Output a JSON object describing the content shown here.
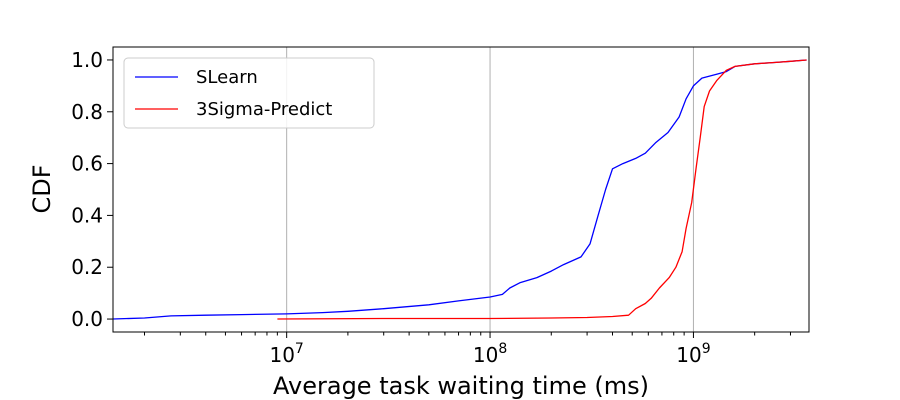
{
  "chart_data": {
    "type": "line",
    "xlabel": "Average task waiting time (ms)",
    "ylabel": "CDF",
    "xscale": "log",
    "xlim": [
      1400000,
      3700000000
    ],
    "ylim": [
      -0.05,
      1.05
    ],
    "x_ticks": [
      {
        "value": 10000000,
        "base": "10",
        "exp": "7"
      },
      {
        "value": 100000000,
        "base": "10",
        "exp": "8"
      },
      {
        "value": 1000000000,
        "base": "10",
        "exp": "9"
      }
    ],
    "y_ticks": [
      "0.0",
      "0.2",
      "0.4",
      "0.6",
      "0.8",
      "1.0"
    ],
    "grid": "x-major",
    "legend_position": "top-left",
    "series": [
      {
        "name": "SLearn",
        "color": "#0000ff",
        "points": [
          [
            1400000,
            0.0
          ],
          [
            2000000,
            0.004
          ],
          [
            2700000,
            0.012
          ],
          [
            4000000,
            0.015
          ],
          [
            6000000,
            0.017
          ],
          [
            10000000,
            0.02
          ],
          [
            15000000,
            0.025
          ],
          [
            20000000,
            0.03
          ],
          [
            30000000,
            0.04
          ],
          [
            50000000,
            0.055
          ],
          [
            70000000,
            0.07
          ],
          [
            100000000,
            0.085
          ],
          [
            115000000,
            0.095
          ],
          [
            125000000,
            0.12
          ],
          [
            140000000,
            0.14
          ],
          [
            170000000,
            0.16
          ],
          [
            200000000,
            0.185
          ],
          [
            230000000,
            0.21
          ],
          [
            280000000,
            0.24
          ],
          [
            310000000,
            0.29
          ],
          [
            340000000,
            0.4
          ],
          [
            370000000,
            0.5
          ],
          [
            400000000,
            0.58
          ],
          [
            450000000,
            0.6
          ],
          [
            520000000,
            0.62
          ],
          [
            580000000,
            0.64
          ],
          [
            650000000,
            0.68
          ],
          [
            750000000,
            0.72
          ],
          [
            850000000,
            0.78
          ],
          [
            920000000,
            0.85
          ],
          [
            1000000000,
            0.9
          ],
          [
            1100000000,
            0.93
          ],
          [
            1300000000,
            0.945
          ],
          [
            1450000000,
            0.955
          ],
          [
            1600000000,
            0.975
          ],
          [
            2000000000,
            0.985
          ],
          [
            2500000000,
            0.99
          ],
          [
            3000000000,
            0.995
          ],
          [
            3600000000,
            1.0
          ]
        ]
      },
      {
        "name": "3Sigma-Predict",
        "color": "#ff0000",
        "points": [
          [
            9000000,
            0.0
          ],
          [
            30000000,
            0.002
          ],
          [
            100000000,
            0.002
          ],
          [
            200000000,
            0.004
          ],
          [
            300000000,
            0.006
          ],
          [
            400000000,
            0.01
          ],
          [
            480000000,
            0.015
          ],
          [
            520000000,
            0.04
          ],
          [
            580000000,
            0.06
          ],
          [
            620000000,
            0.08
          ],
          [
            680000000,
            0.12
          ],
          [
            760000000,
            0.16
          ],
          [
            820000000,
            0.2
          ],
          [
            880000000,
            0.26
          ],
          [
            920000000,
            0.35
          ],
          [
            980000000,
            0.45
          ],
          [
            1030000000,
            0.58
          ],
          [
            1080000000,
            0.7
          ],
          [
            1130000000,
            0.82
          ],
          [
            1200000000,
            0.88
          ],
          [
            1300000000,
            0.92
          ],
          [
            1450000000,
            0.96
          ],
          [
            1600000000,
            0.975
          ],
          [
            2000000000,
            0.985
          ],
          [
            2500000000,
            0.99
          ],
          [
            3000000000,
            0.995
          ],
          [
            3600000000,
            1.0
          ]
        ]
      }
    ]
  }
}
